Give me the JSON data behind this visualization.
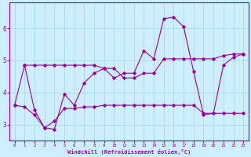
{
  "title": "",
  "xlabel": "Windchill (Refroidissement éolien,°C)",
  "ylabel": "",
  "background_color": "#cceeff",
  "grid_color": "#aadddd",
  "line_color": "#990099",
  "xlim": [
    -0.5,
    23.5
  ],
  "ylim": [
    2.5,
    6.8
  ],
  "yticks": [
    3,
    4,
    5,
    6
  ],
  "xticks": [
    0,
    1,
    2,
    3,
    4,
    5,
    6,
    7,
    8,
    9,
    10,
    11,
    12,
    13,
    14,
    15,
    16,
    17,
    18,
    19,
    20,
    21,
    22,
    23
  ],
  "series1_x": [
    0,
    1,
    2,
    3,
    4,
    5,
    6,
    7,
    8,
    9,
    10,
    11,
    12,
    13,
    14,
    15,
    16,
    17,
    18,
    19,
    20,
    21,
    22,
    23
  ],
  "series1_y": [
    3.6,
    4.85,
    4.85,
    4.85,
    4.85,
    4.85,
    4.85,
    4.85,
    4.85,
    4.75,
    4.75,
    4.45,
    4.45,
    4.6,
    4.6,
    5.05,
    5.05,
    5.05,
    5.05,
    5.05,
    5.05,
    5.15,
    5.2,
    5.2
  ],
  "series2_x": [
    0,
    1,
    2,
    3,
    4,
    5,
    6,
    7,
    8,
    9,
    10,
    11,
    12,
    13,
    14,
    15,
    16,
    17,
    18,
    19,
    20,
    21,
    22,
    23
  ],
  "series2_y": [
    3.6,
    3.55,
    3.3,
    2.9,
    3.1,
    3.5,
    3.5,
    3.55,
    3.55,
    3.6,
    3.6,
    3.6,
    3.6,
    3.6,
    3.6,
    3.6,
    3.6,
    3.6,
    3.6,
    3.35,
    3.35,
    3.35,
    3.35,
    3.35
  ],
  "series3_x": [
    1,
    2,
    3,
    4,
    5,
    6,
    7,
    8,
    9,
    10,
    11,
    12,
    13,
    14,
    15,
    16,
    17,
    18,
    19,
    20,
    21,
    22,
    23
  ],
  "series3_y": [
    4.85,
    3.45,
    2.9,
    2.85,
    3.95,
    3.6,
    4.3,
    4.6,
    4.75,
    4.45,
    4.6,
    4.6,
    5.3,
    5.05,
    6.3,
    6.35,
    6.05,
    4.65,
    3.3,
    3.35,
    4.85,
    5.1,
    5.2
  ]
}
